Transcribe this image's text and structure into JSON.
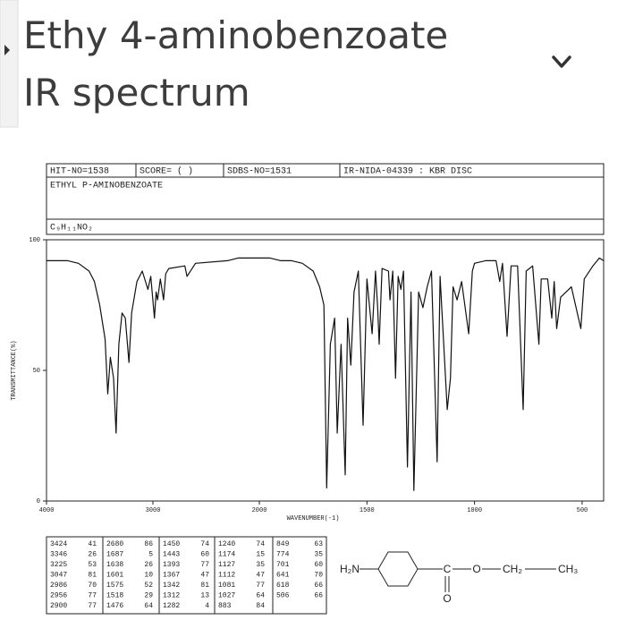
{
  "page": {
    "title_lines": [
      "Ethy 4-aminobenzoate",
      "IR spectrum"
    ]
  },
  "spectrum_header": {
    "hit_no": "HIT-NO=1538",
    "score": "SCORE=  (    )",
    "sdbs_no": "SDBS-NO=1531",
    "ir_no": "IR-NIDA-04339 : KBR DISC",
    "compound": "ETHYL P-AMINOBENZOATE",
    "formula": "C₉H₁₁NO₂"
  },
  "chart_data": {
    "type": "line",
    "color": "#111111",
    "y_label": "TRANSMITTANCE(%)",
    "x_label": "WAVENUMBER(-1)",
    "xlim": [
      4000,
      400
    ],
    "x_scale_change": 2000,
    "xticks": [
      4000,
      3000,
      2000,
      1500,
      1000,
      500
    ],
    "ylim": [
      0,
      100
    ],
    "yticks": [
      0,
      50,
      100
    ],
    "x": [
      4000,
      3800,
      3700,
      3600,
      3550,
      3500,
      3450,
      3424,
      3400,
      3370,
      3346,
      3320,
      3290,
      3260,
      3225,
      3200,
      3150,
      3100,
      3047,
      3020,
      2986,
      2970,
      2956,
      2930,
      2900,
      2880,
      2850,
      2700,
      2680,
      2600,
      2300,
      2200,
      2100,
      2000,
      1950,
      1900,
      1850,
      1800,
      1750,
      1720,
      1700,
      1687,
      1670,
      1650,
      1638,
      1620,
      1601,
      1590,
      1575,
      1560,
      1540,
      1518,
      1500,
      1476,
      1460,
      1450,
      1443,
      1430,
      1400,
      1393,
      1380,
      1367,
      1355,
      1342,
      1330,
      1312,
      1295,
      1282,
      1260,
      1240,
      1220,
      1200,
      1174,
      1160,
      1127,
      1112,
      1100,
      1081,
      1060,
      1027,
      1010,
      1000,
      950,
      900,
      883,
      870,
      849,
      830,
      800,
      774,
      760,
      730,
      701,
      690,
      660,
      641,
      630,
      618,
      600,
      550,
      506,
      490,
      450,
      420,
      400
    ],
    "values": [
      92,
      92,
      91,
      88,
      84,
      75,
      62,
      41,
      55,
      47,
      26,
      60,
      72,
      70,
      53,
      72,
      84,
      88,
      81,
      86,
      70,
      80,
      77,
      85,
      77,
      87,
      89,
      90,
      86,
      91,
      92,
      93,
      93,
      93,
      93,
      92,
      92,
      91,
      88,
      82,
      75,
      5,
      60,
      70,
      26,
      60,
      10,
      70,
      52,
      80,
      88,
      29,
      85,
      64,
      88,
      74,
      60,
      89,
      88,
      77,
      88,
      47,
      86,
      81,
      88,
      13,
      80,
      4,
      80,
      74,
      82,
      88,
      15,
      86,
      35,
      47,
      82,
      77,
      84,
      64,
      88,
      91,
      92,
      92,
      84,
      91,
      63,
      90,
      90,
      35,
      88,
      90,
      60,
      85,
      85,
      70,
      84,
      66,
      78,
      82,
      66,
      85,
      90,
      93,
      92
    ]
  },
  "peak_table": [
    [
      [
        3424,
        41
      ],
      [
        3346,
        26
      ],
      [
        3225,
        53
      ],
      [
        3047,
        81
      ],
      [
        2986,
        70
      ],
      [
        2956,
        77
      ],
      [
        2900,
        77
      ]
    ],
    [
      [
        2680,
        86
      ],
      [
        1687,
        5
      ],
      [
        1638,
        26
      ],
      [
        1601,
        10
      ],
      [
        1575,
        52
      ],
      [
        1518,
        29
      ],
      [
        1476,
        64
      ]
    ],
    [
      [
        1450,
        74
      ],
      [
        1443,
        60
      ],
      [
        1393,
        77
      ],
      [
        1367,
        47
      ],
      [
        1342,
        81
      ],
      [
        1312,
        13
      ],
      [
        1282,
        4
      ]
    ],
    [
      [
        1240,
        74
      ],
      [
        1174,
        15
      ],
      [
        1127,
        35
      ],
      [
        1112,
        47
      ],
      [
        1081,
        77
      ],
      [
        1027,
        64
      ],
      [
        883,
        84
      ]
    ],
    [
      [
        849,
        63
      ],
      [
        774,
        35
      ],
      [
        701,
        60
      ],
      [
        641,
        70
      ],
      [
        618,
        66
      ],
      [
        506,
        66
      ]
    ]
  ],
  "structure": {
    "amine": "H₂N",
    "carbonyl_c": "C",
    "carbonyl_o": "O",
    "ester_o": "O",
    "methylene": "CH₂",
    "methyl": "CH₃"
  }
}
